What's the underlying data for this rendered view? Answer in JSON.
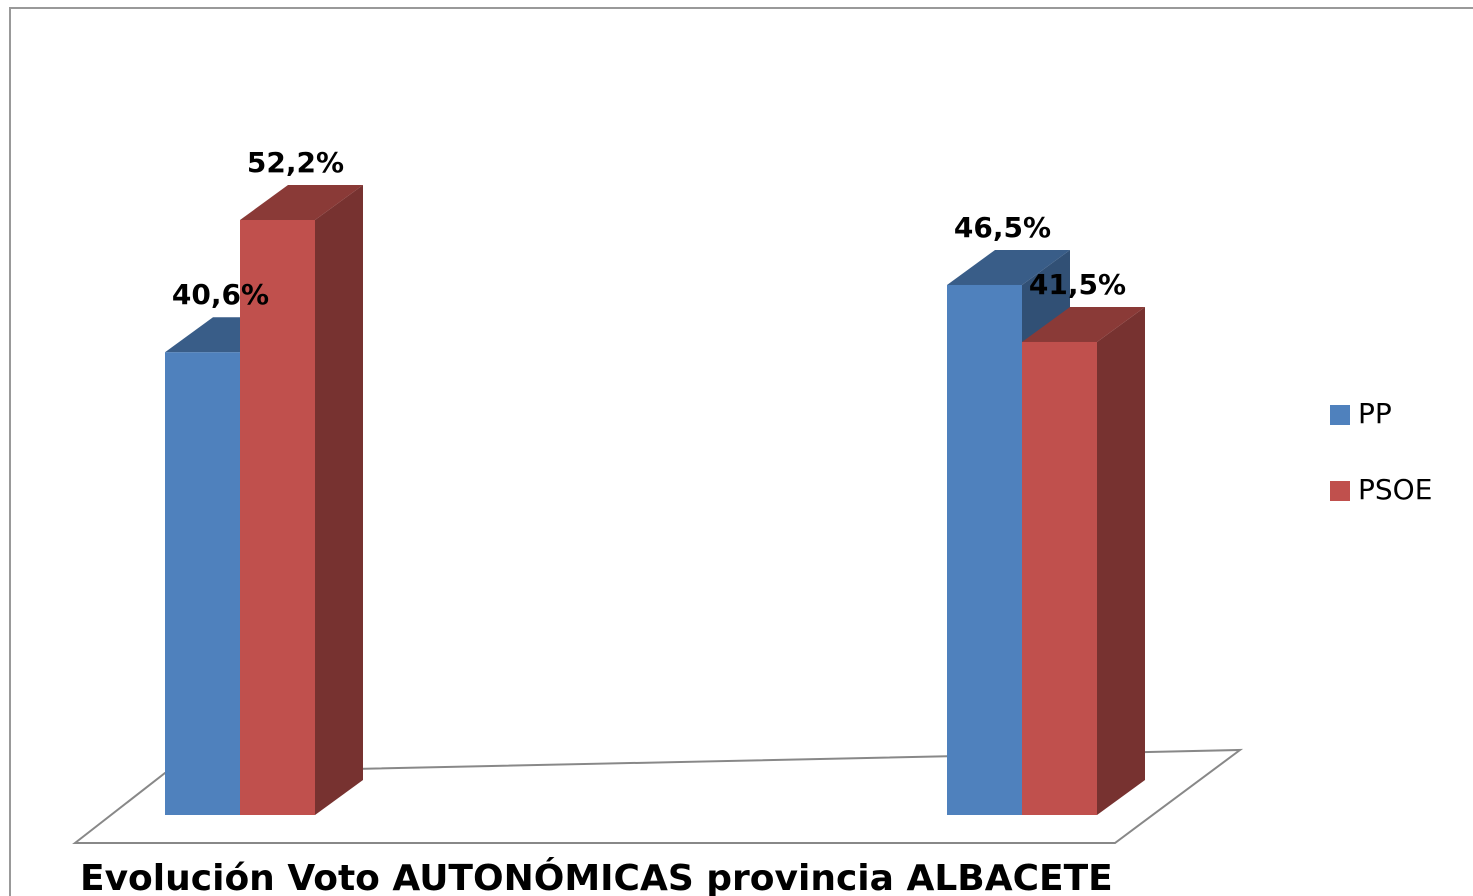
{
  "chart_data": {
    "type": "bar3d",
    "title": "Evolución Voto AUTONÓMICAS provincia ALBACETE",
    "categories": [
      null,
      null
    ],
    "series": [
      {
        "name": "PP",
        "color": "#4f81bd",
        "values": [
          40.6,
          46.5
        ],
        "value_labels": [
          "40,6%",
          "46,5%"
        ]
      },
      {
        "name": "PSOE",
        "color": "#c0504d",
        "values": [
          52.2,
          41.5
        ],
        "value_labels": [
          "52,2%",
          "41,5%"
        ]
      }
    ],
    "legend": "right"
  }
}
